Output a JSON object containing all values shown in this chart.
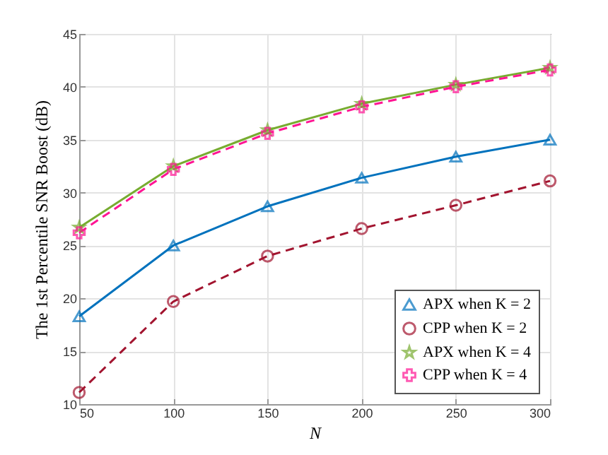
{
  "chart_data": {
    "type": "line",
    "xlabel": "N",
    "ylabel": "The 1st Percentile SNR Boost (dB)",
    "x": [
      50,
      100,
      150,
      200,
      250,
      300
    ],
    "xlim": [
      50,
      300
    ],
    "xticks": [
      50,
      100,
      150,
      200,
      250,
      300
    ],
    "ylim": [
      10,
      45
    ],
    "yticks": [
      10,
      15,
      20,
      25,
      30,
      35,
      40,
      45
    ],
    "grid": true,
    "legend": "bottom right",
    "series": [
      {
        "name": "APX when K = 2",
        "color": "#0072bd",
        "marker": "triangle",
        "line_style": "solid",
        "values": [
          18.3,
          25.0,
          28.7,
          31.4,
          33.4,
          35.0
        ]
      },
      {
        "name": "CPP when K = 2",
        "color": "#a2142f",
        "marker": "circle",
        "line_style": "dashed",
        "values": [
          11.1,
          19.7,
          24.0,
          26.6,
          28.8,
          31.1
        ]
      },
      {
        "name": "APX when K = 4",
        "color": "#77ac30",
        "marker": "star",
        "line_style": "solid",
        "values": [
          26.7,
          32.5,
          35.9,
          38.4,
          40.2,
          41.8
        ]
      },
      {
        "name": "CPP when K = 4",
        "color": "#ff1493",
        "marker": "cross",
        "line_style": "dashed",
        "values": [
          26.2,
          32.2,
          35.6,
          38.1,
          40.0,
          41.6
        ]
      }
    ]
  }
}
